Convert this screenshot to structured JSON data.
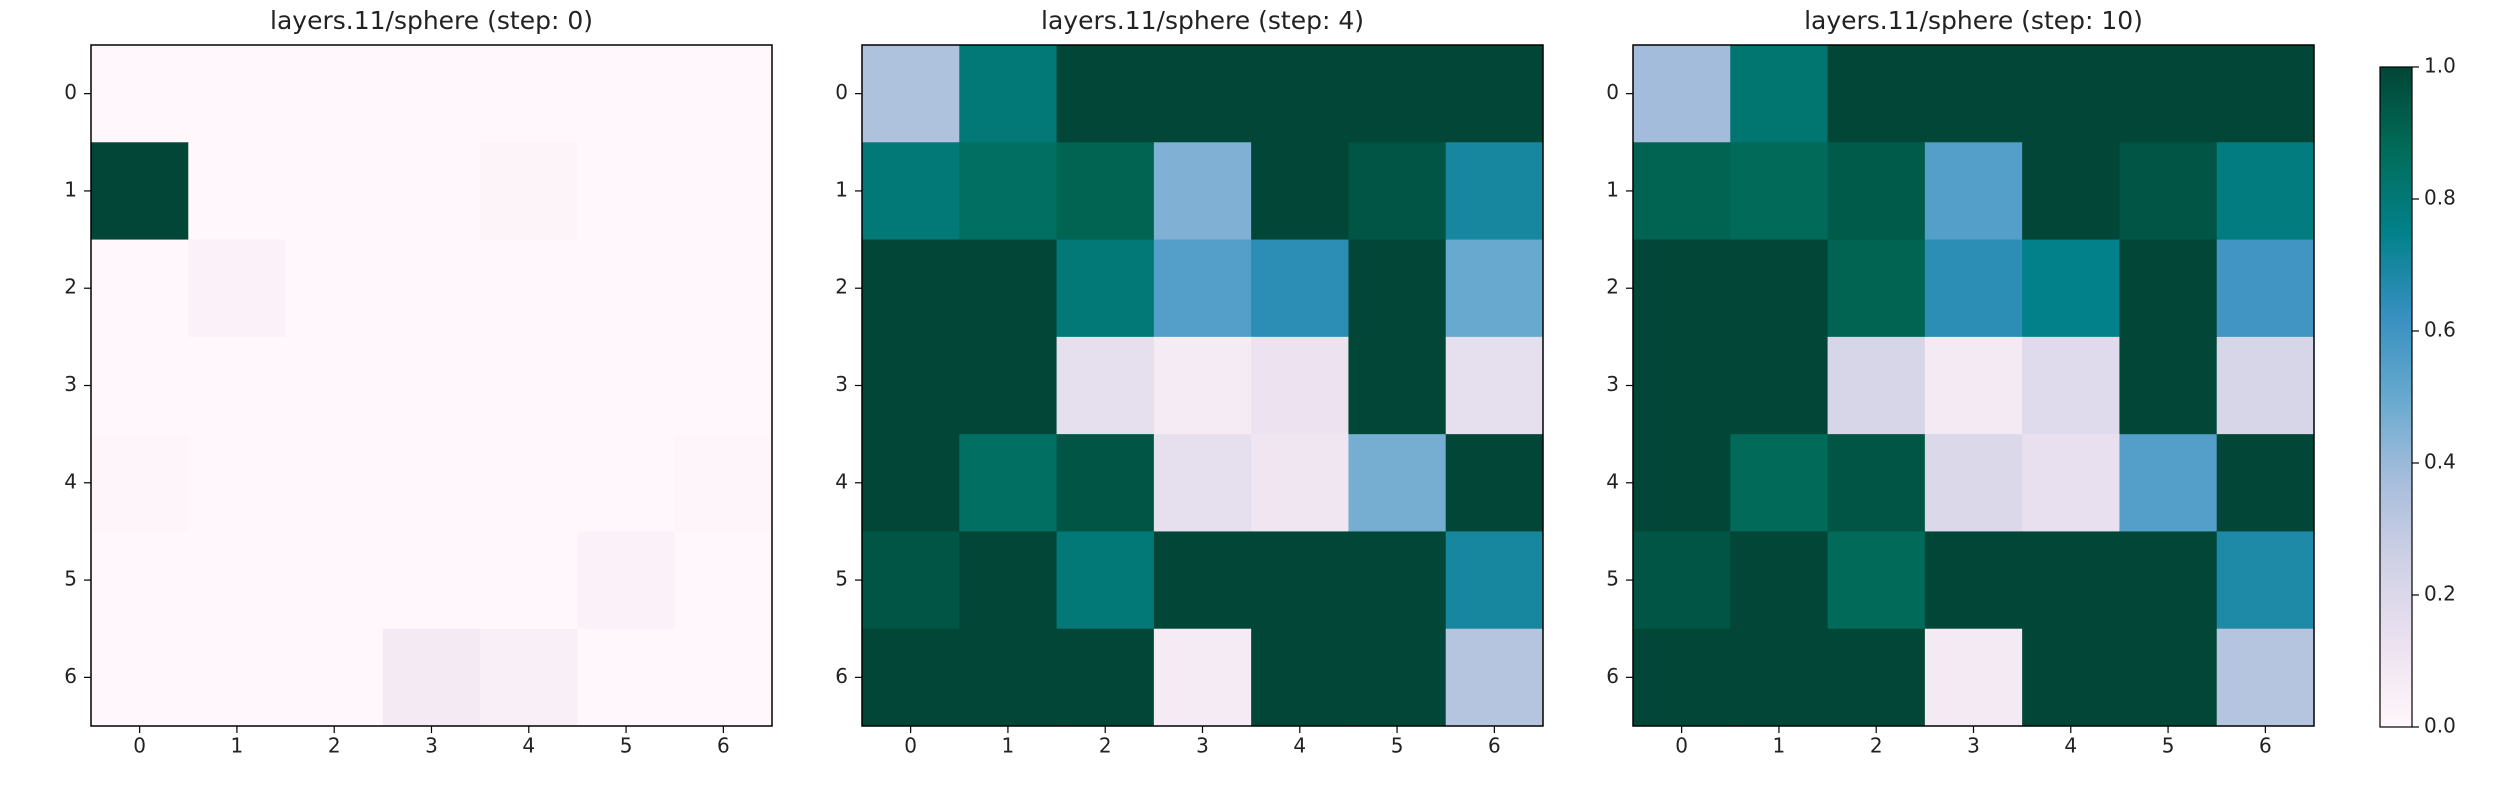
{
  "chart_data": [
    {
      "type": "heatmap",
      "title": "layers.11/sphere (step: 0)",
      "xlim": [
        -0.5,
        6.5
      ],
      "ylim": [
        6.5,
        -0.5
      ],
      "xticks": [
        0,
        1,
        2,
        3,
        4,
        5,
        6
      ],
      "yticks": [
        0,
        1,
        2,
        3,
        4,
        5,
        6
      ],
      "values": [
        [
          0,
          0,
          0,
          0,
          0,
          0,
          0
        ],
        [
          1.0,
          0,
          0,
          0,
          0.02,
          0,
          0
        ],
        [
          0,
          0.03,
          0,
          0,
          0,
          0,
          0
        ],
        [
          0,
          0,
          0,
          0,
          0,
          0,
          0
        ],
        [
          0.01,
          0,
          0,
          0,
          0,
          0,
          0.01
        ],
        [
          0,
          0,
          0,
          0,
          0,
          0.03,
          0
        ],
        [
          0,
          0,
          0,
          0.08,
          0.04,
          0,
          0
        ]
      ]
    },
    {
      "type": "heatmap",
      "title": "layers.11/sphere (step: 4)",
      "xlim": [
        -0.5,
        6.5
      ],
      "ylim": [
        6.5,
        -0.5
      ],
      "xticks": [
        0,
        1,
        2,
        3,
        4,
        5,
        6
      ],
      "yticks": [
        0,
        1,
        2,
        3,
        4,
        5,
        6
      ],
      "values": [
        [
          0.35,
          0.8,
          1,
          1,
          1,
          1,
          1
        ],
        [
          0.8,
          0.85,
          0.9,
          0.45,
          1,
          0.95,
          0.7
        ],
        [
          1,
          1,
          0.8,
          0.55,
          0.65,
          1,
          0.5
        ],
        [
          1,
          1,
          0.15,
          0.07,
          0.12,
          1,
          0.15
        ],
        [
          1,
          0.85,
          0.95,
          0.15,
          0.1,
          0.47,
          1
        ],
        [
          0.95,
          1,
          0.8,
          1,
          1,
          1,
          0.7
        ],
        [
          1,
          1,
          1,
          0.07,
          1,
          1,
          0.33
        ]
      ]
    },
    {
      "type": "heatmap",
      "title": "layers.11/sphere (step: 10)",
      "xlim": [
        -0.5,
        6.5
      ],
      "ylim": [
        6.5,
        -0.5
      ],
      "xticks": [
        0,
        1,
        2,
        3,
        4,
        5,
        6
      ],
      "yticks": [
        0,
        1,
        2,
        3,
        4,
        5,
        6
      ],
      "values": [
        [
          0.38,
          0.82,
          1,
          1,
          1,
          1,
          1
        ],
        [
          0.9,
          0.88,
          0.93,
          0.55,
          1,
          0.95,
          0.78
        ],
        [
          1,
          1,
          0.9,
          0.65,
          0.75,
          1,
          0.6
        ],
        [
          1,
          1,
          0.22,
          0.08,
          0.18,
          1,
          0.22
        ],
        [
          1,
          0.88,
          0.95,
          0.2,
          0.14,
          0.55,
          1
        ],
        [
          0.95,
          1,
          0.88,
          1,
          1,
          1,
          0.68
        ],
        [
          1,
          1,
          1,
          0.08,
          1,
          1,
          0.33
        ]
      ]
    }
  ],
  "colorbar": {
    "lim": [
      0,
      1
    ],
    "ticks": [
      {
        "value": 0,
        "label": "0.0"
      },
      {
        "value": 0.2,
        "label": "0.2"
      },
      {
        "value": 0.4,
        "label": "0.4"
      },
      {
        "value": 0.6,
        "label": "0.6"
      },
      {
        "value": 0.8,
        "label": "0.8"
      },
      {
        "value": 1,
        "label": "1.0"
      }
    ],
    "colormap": [
      "#fff7fb",
      "#ece2f0",
      "#d0d1e6",
      "#a6bddb",
      "#67a9cf",
      "#3690c0",
      "#02818a",
      "#016c59",
      "#014636"
    ]
  }
}
